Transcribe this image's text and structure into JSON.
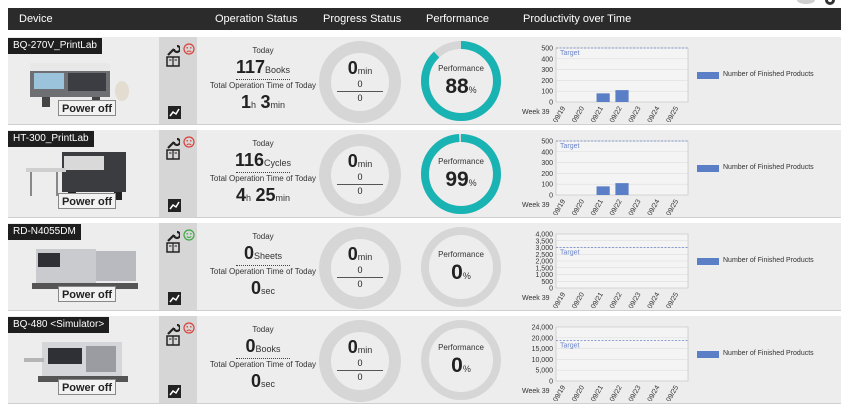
{
  "header": {
    "device": "Device",
    "operation_status": "Operation Status",
    "progress_status": "Progress Status",
    "performance": "Performance",
    "productivity": "Productivity over Time"
  },
  "colors": {
    "accent": "#1ab3b3",
    "ring_bg": "#d6d6d6",
    "bar": "#5b7fc6",
    "target": "#6b85c9",
    "sad": "#d9413b",
    "happy": "#3ea843"
  },
  "devices": [
    {
      "name": "BQ-270V_PrintLab",
      "power": "Power off",
      "status_face": "sad",
      "today": "Today",
      "count": "117",
      "unit": "Books",
      "total_label": "Total Operation Time of Today",
      "time_a": "1",
      "time_a_unit": "h",
      "time_b": "3",
      "time_b_unit": "min",
      "progress": "0",
      "progress_unit": "min",
      "progress_num": "0",
      "progress_den": "0",
      "perf_label": "Performance",
      "perf": "88",
      "perf_unit": "%",
      "chart": {
        "yticks": [
          "500",
          "400",
          "300",
          "200",
          "100",
          "0"
        ],
        "max": 500,
        "target": 500,
        "target_label": "Target",
        "week": "Week 39",
        "dates": [
          "09/19",
          "09/20",
          "09/21",
          "09/22",
          "09/23",
          "09/24",
          "09/25"
        ],
        "values": [
          0,
          0,
          80,
          110,
          0,
          0,
          0
        ],
        "legend": "Number of Finished Products"
      }
    },
    {
      "name": "HT-300_PrintLab",
      "power": "Power off",
      "status_face": "sad",
      "today": "Today",
      "count": "116",
      "unit": "Cycles",
      "total_label": "Total Operation Time of Today",
      "time_a": "4",
      "time_a_unit": "h",
      "time_b": "25",
      "time_b_unit": "min",
      "progress": "0",
      "progress_unit": "min",
      "progress_num": "0",
      "progress_den": "0",
      "perf_label": "Performance",
      "perf": "99",
      "perf_unit": "%",
      "chart": {
        "yticks": [
          "500",
          "400",
          "300",
          "200",
          "100",
          "0"
        ],
        "max": 500,
        "target": 500,
        "target_label": "Target",
        "week": "Week 39",
        "dates": [
          "09/19",
          "09/20",
          "09/21",
          "09/22",
          "09/23",
          "09/24",
          "09/25"
        ],
        "values": [
          0,
          0,
          80,
          110,
          0,
          0,
          0
        ],
        "legend": "Number of Finished Products"
      }
    },
    {
      "name": "RD-N4055DM",
      "power": "Power off",
      "status_face": "happy",
      "today": "Today",
      "count": "0",
      "unit": "Sheets",
      "total_label": "Total Operation Time of Today",
      "time_a": "0",
      "time_a_unit": "sec",
      "time_b": "",
      "time_b_unit": "",
      "progress": "0",
      "progress_unit": "min",
      "progress_num": "0",
      "progress_den": "0",
      "perf_label": "Performance",
      "perf": "0",
      "perf_unit": "%",
      "chart": {
        "yticks": [
          "4,000",
          "3,500",
          "3,000",
          "2,500",
          "2,000",
          "1,500",
          "1,000",
          "500",
          "0"
        ],
        "max": 4000,
        "target": 3000,
        "target_label": "Target",
        "week": "Week 39",
        "dates": [
          "09/19",
          "09/20",
          "09/21",
          "09/22",
          "09/23",
          "09/24",
          "09/25"
        ],
        "values": [
          0,
          0,
          0,
          0,
          0,
          0,
          0
        ],
        "legend": "Number of Finished Products"
      }
    },
    {
      "name": "BQ-480 <Simulator>",
      "power": "Power off",
      "status_face": "sad",
      "today": "Today",
      "count": "0",
      "unit": "Books",
      "total_label": "Total Operation Time of Today",
      "time_a": "0",
      "time_a_unit": "sec",
      "time_b": "",
      "time_b_unit": "",
      "progress": "0",
      "progress_unit": "min",
      "progress_num": "0",
      "progress_den": "0",
      "perf_label": "Performance",
      "perf": "0",
      "perf_unit": "%",
      "chart": {
        "yticks": [
          "24,000",
          "20,000",
          "15,000",
          "10,000",
          "5,000",
          "0"
        ],
        "max": 24000,
        "target": 18000,
        "target_label": "Target",
        "week": "Week 39",
        "dates": [
          "09/19",
          "09/20",
          "09/21",
          "09/22",
          "09/23",
          "09/24",
          "09/25"
        ],
        "values": [
          0,
          0,
          0,
          0,
          0,
          0,
          0
        ],
        "legend": "Number of Finished Products"
      }
    }
  ]
}
